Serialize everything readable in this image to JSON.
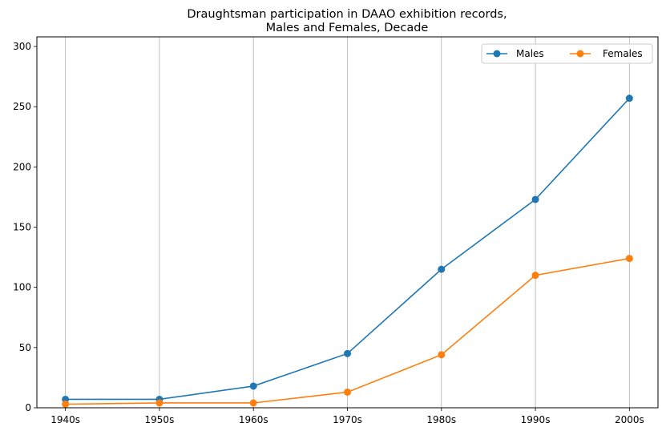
{
  "chart_data": {
    "type": "line",
    "title_line1": "Draughtsman participation in DAAO exhibition records,",
    "title_line2": "Males and Females, Decade",
    "xlabel": "",
    "ylabel": "",
    "categories": [
      "1940s",
      "1950s",
      "1960s",
      "1970s",
      "1980s",
      "1990s",
      "2000s"
    ],
    "series": [
      {
        "name": "Males",
        "color": "#1f77b4",
        "values": [
          7,
          7,
          18,
          45,
          115,
          173,
          257
        ]
      },
      {
        "name": "Females",
        "color": "#ff7f0e",
        "values": [
          3,
          4,
          4,
          13,
          44,
          110,
          124
        ]
      }
    ],
    "ylim": [
      0,
      308
    ],
    "yticks": [
      0,
      50,
      100,
      150,
      200,
      250,
      300
    ],
    "grid": "vertical",
    "legend_position": "upper right",
    "marker": "circle"
  }
}
